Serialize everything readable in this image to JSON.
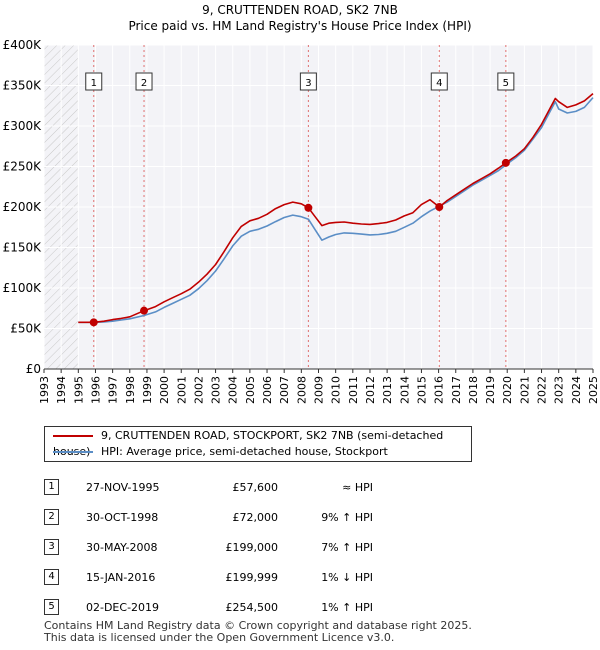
{
  "chart_data": {
    "type": "line",
    "title": "9, CRUTTENDEN ROAD, SK2 7NB",
    "subtitle": "Price paid vs. HM Land Registry's House Price Index (HPI)",
    "xlabel": "",
    "ylabel": "",
    "xlim": [
      1993,
      2025
    ],
    "ylim": [
      0,
      400000
    ],
    "x_ticks": [
      "1993",
      "1994",
      "1995",
      "1996",
      "1997",
      "1998",
      "1999",
      "2000",
      "2001",
      "2002",
      "2003",
      "2004",
      "2005",
      "2006",
      "2007",
      "2008",
      "2009",
      "2010",
      "2011",
      "2012",
      "2013",
      "2014",
      "2015",
      "2016",
      "2017",
      "2018",
      "2019",
      "2020",
      "2021",
      "2022",
      "2023",
      "2024",
      "2025"
    ],
    "y_ticks": [
      0,
      50000,
      100000,
      150000,
      200000,
      250000,
      300000,
      350000,
      400000
    ],
    "y_tick_labels": [
      "£0",
      "£50K",
      "£100K",
      "£150K",
      "£200K",
      "£250K",
      "£300K",
      "£350K",
      "£400K"
    ],
    "grid": true,
    "hatched_region": [
      1993,
      1995
    ],
    "series": [
      {
        "name": "9, CRUTTENDEN ROAD, STOCKPORT, SK2 7NB (semi-detached house)",
        "color": "#c00000",
        "x": [
          1995.0,
          1995.9,
          1996.5,
          1997.0,
          1997.5,
          1998.0,
          1998.83,
          1999.5,
          2000.0,
          2000.5,
          2001.0,
          2001.5,
          2002.0,
          2002.5,
          2003.0,
          2003.5,
          2004.0,
          2004.5,
          2005.0,
          2005.5,
          2006.0,
          2006.5,
          2007.0,
          2007.5,
          2008.0,
          2008.41,
          2008.8,
          2009.2,
          2009.6,
          2010.0,
          2010.5,
          2011.0,
          2011.5,
          2012.0,
          2012.5,
          2013.0,
          2013.5,
          2014.0,
          2014.5,
          2015.0,
          2015.5,
          2016.04,
          2016.5,
          2017.0,
          2017.5,
          2018.0,
          2018.5,
          2019.0,
          2019.5,
          2019.92,
          2020.5,
          2021.0,
          2021.5,
          2022.0,
          2022.5,
          2022.8,
          2023.0,
          2023.5,
          2024.0,
          2024.5,
          2025.0
        ],
        "values": [
          57600,
          57600,
          59000,
          61000,
          62500,
          64500,
          72000,
          77000,
          83000,
          88000,
          93000,
          98500,
          107000,
          117000,
          129000,
          145000,
          162000,
          176000,
          183000,
          186000,
          191000,
          198000,
          203000,
          206000,
          204000,
          199000,
          188000,
          177000,
          180000,
          181000,
          181500,
          180000,
          179000,
          178500,
          179500,
          181000,
          184000,
          189000,
          193000,
          203000,
          209000,
          199999,
          208000,
          215000,
          222000,
          229000,
          235000,
          241000,
          248000,
          254500,
          263000,
          272000,
          286000,
          302000,
          322000,
          334000,
          330000,
          323000,
          326000,
          331000,
          340000
        ]
      },
      {
        "name": "HPI: Average price, semi-detached house, Stockport",
        "color": "#5b8ec6",
        "x": [
          1995.0,
          1995.9,
          1996.5,
          1997.0,
          1997.5,
          1998.0,
          1998.83,
          1999.5,
          2000.0,
          2000.5,
          2001.0,
          2001.5,
          2002.0,
          2002.5,
          2003.0,
          2003.5,
          2004.0,
          2004.5,
          2005.0,
          2005.5,
          2006.0,
          2006.5,
          2007.0,
          2007.5,
          2008.0,
          2008.41,
          2008.8,
          2009.2,
          2009.6,
          2010.0,
          2010.5,
          2011.0,
          2011.5,
          2012.0,
          2012.5,
          2013.0,
          2013.5,
          2014.0,
          2014.5,
          2015.0,
          2015.5,
          2016.04,
          2016.5,
          2017.0,
          2017.5,
          2018.0,
          2018.5,
          2019.0,
          2019.5,
          2019.92,
          2020.5,
          2021.0,
          2021.5,
          2022.0,
          2022.5,
          2022.8,
          2023.0,
          2023.5,
          2024.0,
          2024.5,
          2025.0
        ],
        "values": [
          57600,
          57600,
          58000,
          59000,
          60500,
          62000,
          66000,
          70500,
          76000,
          81000,
          86000,
          91000,
          99000,
          109000,
          121000,
          136000,
          152000,
          164000,
          170000,
          172500,
          176500,
          182000,
          187000,
          190000,
          188000,
          185000,
          172000,
          159000,
          163000,
          166000,
          168000,
          167500,
          166500,
          165500,
          166000,
          167500,
          170000,
          175000,
          180000,
          188000,
          195000,
          201000,
          206000,
          213000,
          220000,
          227000,
          233000,
          239000,
          245000,
          252000,
          261000,
          270000,
          284000,
          298000,
          318000,
          330000,
          321000,
          316000,
          318000,
          323000,
          335000
        ]
      }
    ],
    "sale_markers": [
      {
        "label": "1",
        "x": 1995.9,
        "value": 57600
      },
      {
        "label": "2",
        "x": 1998.83,
        "value": 72000
      },
      {
        "label": "3",
        "x": 2008.41,
        "value": 199000
      },
      {
        "label": "4",
        "x": 2016.04,
        "value": 199999
      },
      {
        "label": "5",
        "x": 2019.92,
        "value": 254500
      }
    ]
  },
  "legend": {
    "property_label": "9, CRUTTENDEN ROAD, STOCKPORT, SK2 7NB (semi-detached house)",
    "hpi_label": "HPI: Average price, semi-detached house, Stockport"
  },
  "sales": [
    {
      "num": "1",
      "date": "27-NOV-1995",
      "price": "£57,600",
      "hpi": "≈ HPI"
    },
    {
      "num": "2",
      "date": "30-OCT-1998",
      "price": "£72,000",
      "hpi": "9% ↑ HPI"
    },
    {
      "num": "3",
      "date": "30-MAY-2008",
      "price": "£199,000",
      "hpi": "7% ↑ HPI"
    },
    {
      "num": "4",
      "date": "15-JAN-2016",
      "price": "£199,999",
      "hpi": "1% ↓ HPI"
    },
    {
      "num": "5",
      "date": "02-DEC-2019",
      "price": "£254,500",
      "hpi": "1% ↑ HPI"
    }
  ],
  "footer": {
    "line1": "Contains HM Land Registry data © Crown copyright and database right 2025.",
    "line2": "This data is licensed under the Open Government Licence v3.0."
  }
}
